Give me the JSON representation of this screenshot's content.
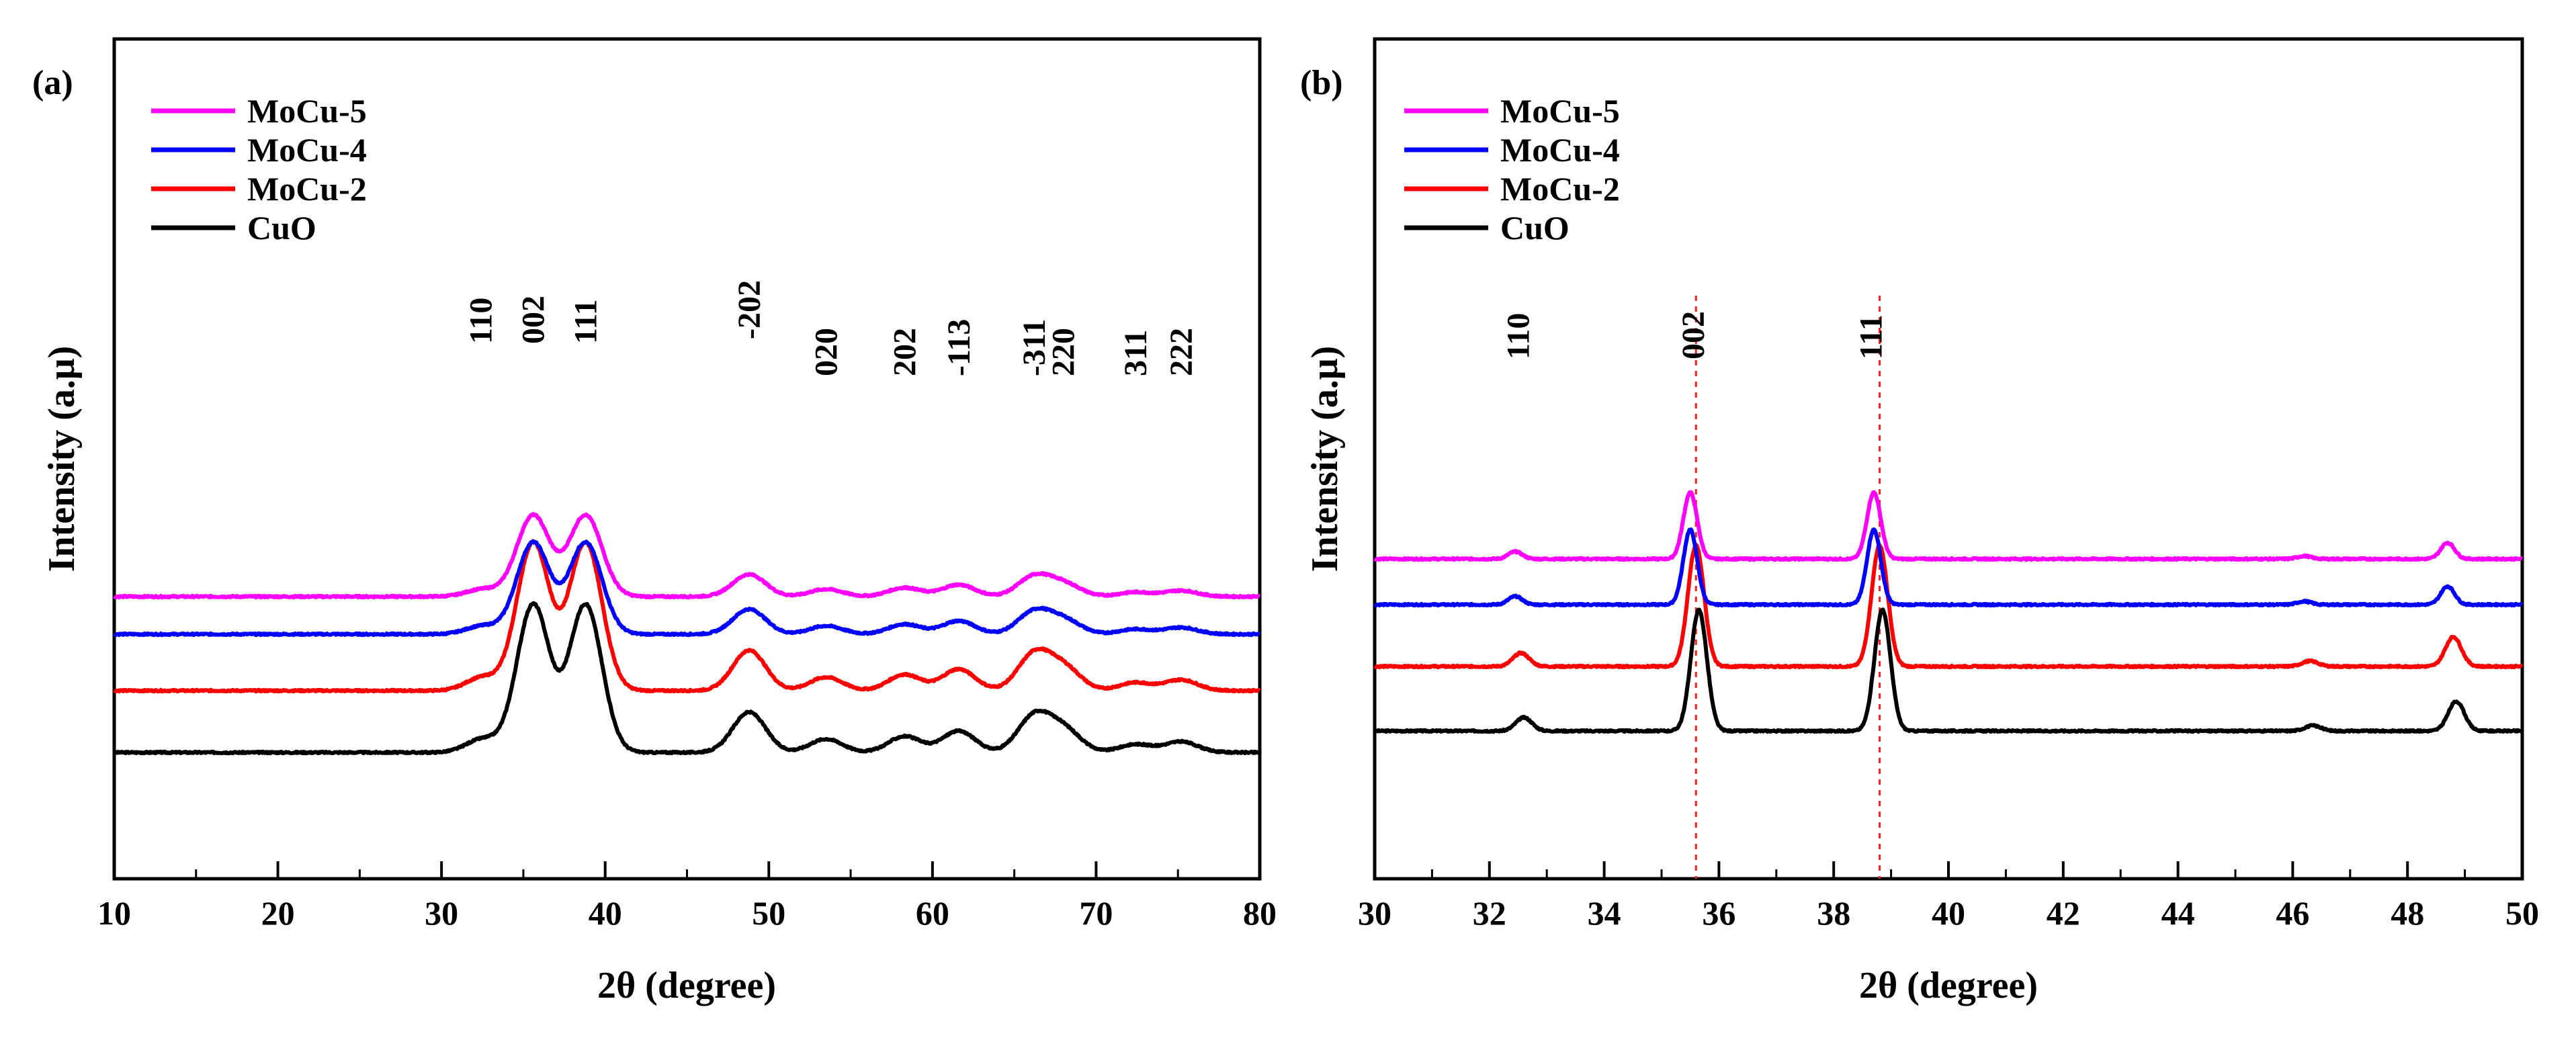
{
  "chart_data": [
    {
      "panel_label": "(a)",
      "type": "line",
      "xlabel": "2θ (degree)",
      "ylabel": "Intensity (a.μ)",
      "xlim": [
        10,
        80
      ],
      "xticks": [
        "10",
        "20",
        "30",
        "40",
        "50",
        "60",
        "70",
        "80"
      ],
      "legend_position": "top-left",
      "series": [
        {
          "name": "MoCu-5",
          "color": "#ff00ff",
          "baseline": 0.28,
          "scale": 0.55,
          "width": 1.0
        },
        {
          "name": "MoCu-4",
          "color": "#0000ff",
          "baseline": 0.14,
          "scale": 0.62,
          "width": 1.0
        },
        {
          "name": "MoCu-2",
          "color": "#ff0000",
          "baseline": -0.07,
          "scale": 1.0,
          "width": 1.0
        },
        {
          "name": "CuO",
          "color": "#000000",
          "baseline": -0.3,
          "scale": 1.0,
          "width": 1.0
        }
      ],
      "peaks": [
        {
          "x": 32.5,
          "h": 0.05
        },
        {
          "x": 35.6,
          "h": 0.55
        },
        {
          "x": 38.8,
          "h": 0.55
        },
        {
          "x": 48.8,
          "h": 0.15
        },
        {
          "x": 53.5,
          "h": 0.05
        },
        {
          "x": 58.3,
          "h": 0.06
        },
        {
          "x": 61.6,
          "h": 0.08
        },
        {
          "x": 66.0,
          "h": 0.05
        },
        {
          "x": 66.4,
          "h": 0.09
        },
        {
          "x": 68.1,
          "h": 0.08
        },
        {
          "x": 72.4,
          "h": 0.03
        },
        {
          "x": 75.2,
          "h": 0.04
        }
      ],
      "peak_labels": [
        {
          "text": "110",
          "x": 32.4
        },
        {
          "text": "002",
          "x": 35.6
        },
        {
          "text": "111",
          "x": 38.8
        },
        {
          "text": "-202",
          "x": 48.8
        },
        {
          "text": "020",
          "x": 53.5
        },
        {
          "text": "202",
          "x": 58.3
        },
        {
          "text": "-113",
          "x": 61.6
        },
        {
          "text": "-311",
          "x": 66.2
        },
        {
          "text": "220",
          "x": 68.0
        },
        {
          "text": "311",
          "x": 72.4
        },
        {
          "text": "222",
          "x": 75.2
        }
      ]
    },
    {
      "panel_label": "(b)",
      "type": "line",
      "xlabel": "2θ (degree)",
      "ylabel": "Intensity (a.μ)",
      "xlim": [
        30,
        50
      ],
      "xticks": [
        "30",
        "32",
        "34",
        "36",
        "38",
        "40",
        "42",
        "44",
        "46",
        "48",
        "50"
      ],
      "legend_position": "top-left",
      "reference_lines": [
        35.6,
        38.8
      ],
      "series": [
        {
          "name": "MoCu-5",
          "color": "#ff00ff",
          "baseline": 0.42,
          "scale": 0.55,
          "shift": -0.1,
          "width": 0.12
        },
        {
          "name": "MoCu-4",
          "color": "#0000ff",
          "baseline": 0.25,
          "scale": 0.62,
          "shift": -0.1,
          "width": 0.12
        },
        {
          "name": "MoCu-2",
          "color": "#ff0000",
          "baseline": 0.02,
          "scale": 1.0,
          "shift": 0.0,
          "width": 0.14
        },
        {
          "name": "CuO",
          "color": "#000000",
          "baseline": -0.22,
          "scale": 1.0,
          "shift": 0.05,
          "width": 0.14
        }
      ],
      "peaks": [
        {
          "x": 32.55,
          "h": 0.05
        },
        {
          "x": 35.6,
          "h": 0.45
        },
        {
          "x": 38.8,
          "h": 0.45
        },
        {
          "x": 46.3,
          "h": 0.02
        },
        {
          "x": 48.8,
          "h": 0.11
        }
      ],
      "peak_labels": [
        {
          "text": "110",
          "x": 32.5
        },
        {
          "text": "002",
          "x": 35.55
        },
        {
          "text": "111",
          "x": 38.65
        }
      ]
    }
  ]
}
